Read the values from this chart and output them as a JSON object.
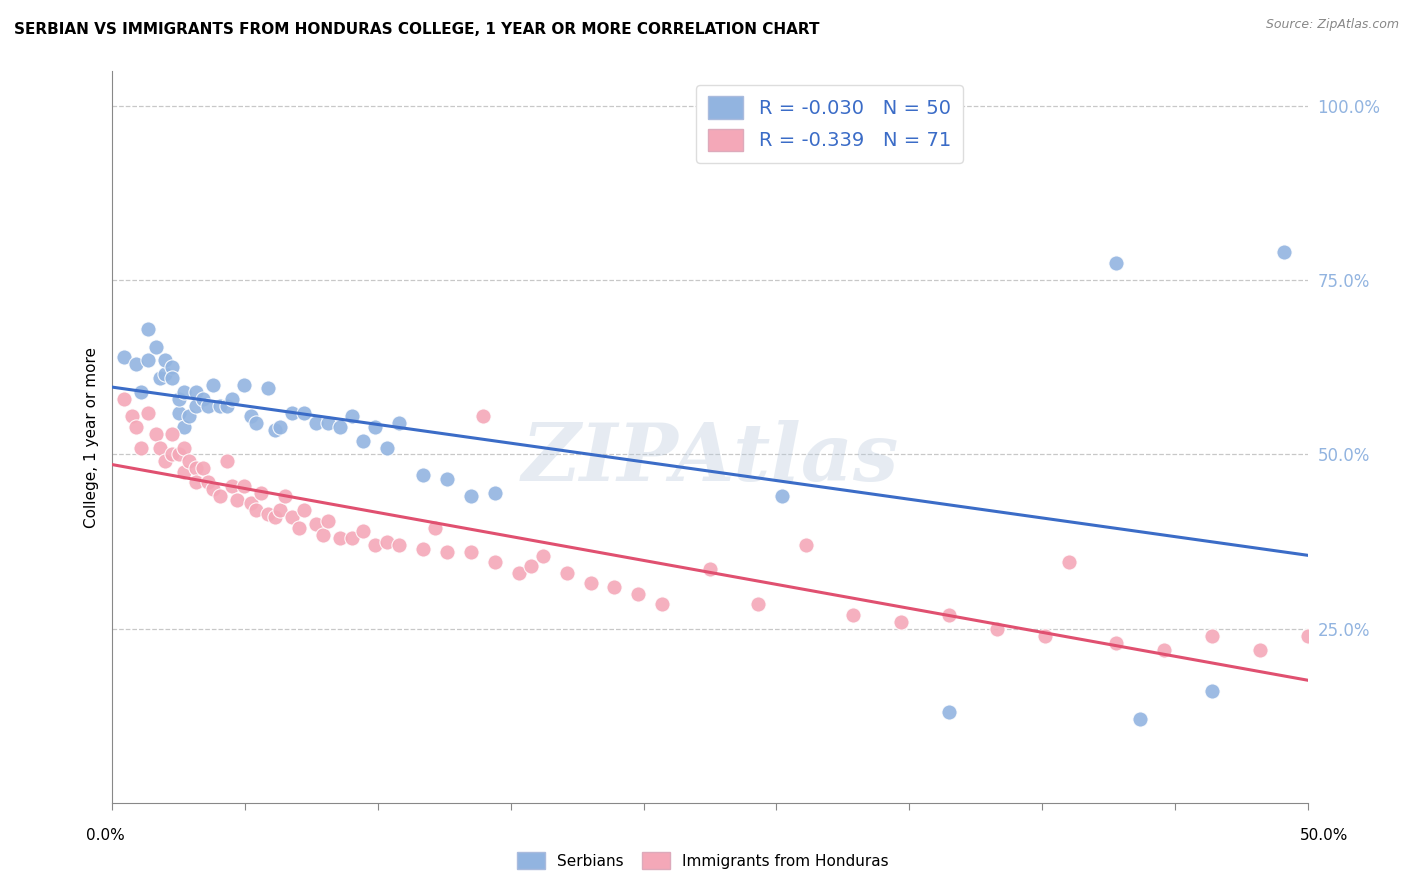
{
  "title": "SERBIAN VS IMMIGRANTS FROM HONDURAS COLLEGE, 1 YEAR OR MORE CORRELATION CHART",
  "source": "Source: ZipAtlas.com",
  "ylabel": "College, 1 year or more",
  "ylabel_right_ticks": [
    "100.0%",
    "75.0%",
    "50.0%",
    "25.0%"
  ],
  "ylabel_right_vals": [
    1.0,
    0.75,
    0.5,
    0.25
  ],
  "watermark_text": "ZIPAtlas",
  "legend_blue_R": "-0.030",
  "legend_blue_N": "50",
  "legend_pink_R": "-0.339",
  "legend_pink_N": "71",
  "blue_color": "#92B4E0",
  "pink_color": "#F4A8B8",
  "blue_line_color": "#3B6CC7",
  "pink_line_color": "#E05070",
  "grid_color": "#C8C8C8",
  "background_color": "#FFFFFF",
  "xlim": [
    0.0,
    0.5
  ],
  "ylim": [
    0.0,
    1.05
  ],
  "blue_scatter_x": [
    0.005,
    0.01,
    0.012,
    0.015,
    0.015,
    0.018,
    0.02,
    0.022,
    0.022,
    0.025,
    0.025,
    0.028,
    0.028,
    0.03,
    0.03,
    0.032,
    0.035,
    0.035,
    0.038,
    0.04,
    0.042,
    0.045,
    0.048,
    0.05,
    0.055,
    0.058,
    0.06,
    0.065,
    0.068,
    0.07,
    0.075,
    0.08,
    0.085,
    0.09,
    0.095,
    0.1,
    0.105,
    0.11,
    0.115,
    0.12,
    0.13,
    0.14,
    0.15,
    0.16,
    0.28,
    0.35,
    0.42,
    0.43,
    0.46,
    0.49
  ],
  "blue_scatter_y": [
    0.64,
    0.63,
    0.59,
    0.68,
    0.635,
    0.655,
    0.61,
    0.615,
    0.635,
    0.625,
    0.61,
    0.56,
    0.58,
    0.54,
    0.59,
    0.555,
    0.57,
    0.59,
    0.58,
    0.57,
    0.6,
    0.57,
    0.57,
    0.58,
    0.6,
    0.555,
    0.545,
    0.595,
    0.535,
    0.54,
    0.56,
    0.56,
    0.545,
    0.545,
    0.54,
    0.555,
    0.52,
    0.54,
    0.51,
    0.545,
    0.47,
    0.465,
    0.44,
    0.445,
    0.44,
    0.13,
    0.775,
    0.12,
    0.16,
    0.79
  ],
  "pink_scatter_x": [
    0.005,
    0.008,
    0.01,
    0.012,
    0.015,
    0.018,
    0.02,
    0.022,
    0.025,
    0.025,
    0.028,
    0.03,
    0.03,
    0.032,
    0.035,
    0.035,
    0.038,
    0.04,
    0.042,
    0.045,
    0.048,
    0.05,
    0.052,
    0.055,
    0.058,
    0.06,
    0.062,
    0.065,
    0.068,
    0.07,
    0.072,
    0.075,
    0.078,
    0.08,
    0.085,
    0.088,
    0.09,
    0.095,
    0.1,
    0.105,
    0.11,
    0.115,
    0.12,
    0.13,
    0.135,
    0.14,
    0.15,
    0.155,
    0.16,
    0.17,
    0.175,
    0.18,
    0.19,
    0.2,
    0.21,
    0.22,
    0.23,
    0.25,
    0.27,
    0.29,
    0.31,
    0.33,
    0.35,
    0.37,
    0.39,
    0.4,
    0.42,
    0.44,
    0.46,
    0.48,
    0.5
  ],
  "pink_scatter_y": [
    0.58,
    0.555,
    0.54,
    0.51,
    0.56,
    0.53,
    0.51,
    0.49,
    0.53,
    0.5,
    0.5,
    0.51,
    0.475,
    0.49,
    0.48,
    0.46,
    0.48,
    0.46,
    0.45,
    0.44,
    0.49,
    0.455,
    0.435,
    0.455,
    0.43,
    0.42,
    0.445,
    0.415,
    0.41,
    0.42,
    0.44,
    0.41,
    0.395,
    0.42,
    0.4,
    0.385,
    0.405,
    0.38,
    0.38,
    0.39,
    0.37,
    0.375,
    0.37,
    0.365,
    0.395,
    0.36,
    0.36,
    0.555,
    0.345,
    0.33,
    0.34,
    0.355,
    0.33,
    0.315,
    0.31,
    0.3,
    0.285,
    0.335,
    0.285,
    0.37,
    0.27,
    0.26,
    0.27,
    0.25,
    0.24,
    0.345,
    0.23,
    0.22,
    0.24,
    0.22,
    0.24
  ]
}
